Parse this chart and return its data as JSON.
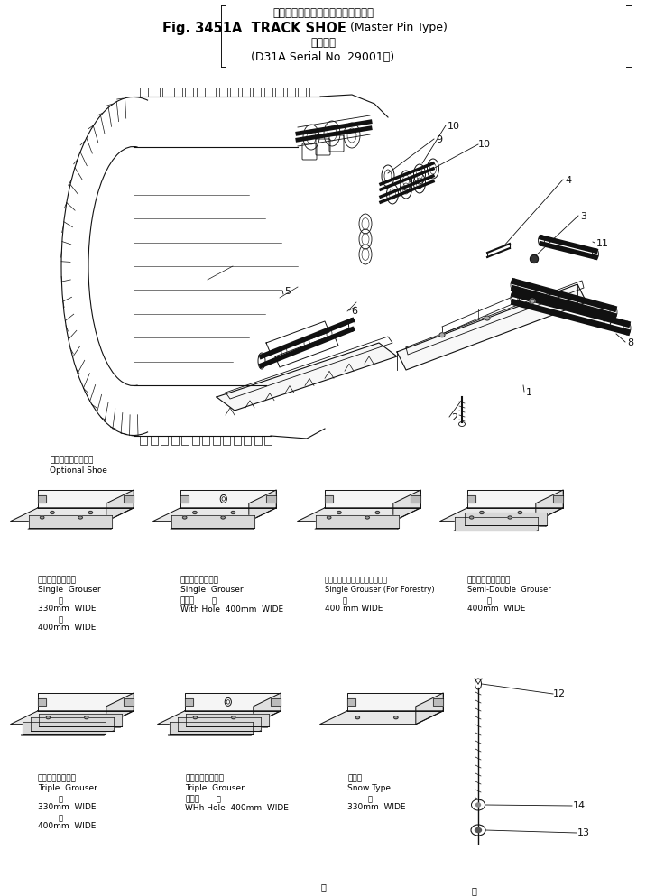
{
  "title_line1": "トラック　シュー（マスタピン　型",
  "title_line2_a": "Fig. 3451A  TRACK SHOE",
  "title_line2_b": "(Master Pin Type)",
  "title_line3": "適用号機",
  "title_line4": "(D31A Serial No. 29001～)",
  "bg_color": "#ffffff",
  "optional_shoe_jp": "オプショナルシュー",
  "optional_shoe_en": "Optional Shoe",
  "shoe1_jp": "シングルグローサ",
  "shoe1_en": "Single  Grouser",
  "shoe1_w1_jp": "幅",
  "shoe1_w1": "330mm  WIDE",
  "shoe1_w2_jp": "幅",
  "shoe1_w2": "400mm  WIDE",
  "shoe2_jp": "シングルグローサ",
  "shoe2_en": "Single  Grouser",
  "shoe2_hole": "穴あき",
  "shoe2_w_jp": "幅",
  "shoe2_w": "With Hole  400mm  WIDE",
  "shoe3_jp": "シングルグローサ　林　業　用",
  "shoe3_en": "Single Grouser (For Forestry)",
  "shoe3_w_jp": "幅",
  "shoe3_w": "400 mm WIDE",
  "shoe4_jp": "セミダブルグローサ",
  "shoe4_en": "Semi-Double  Grouser",
  "shoe4_w_jp": "幅",
  "shoe4_w": "400mm  WIDE",
  "shoe5_jp": "トリプルグローサ",
  "shoe5_en": "Triple  Grouser",
  "shoe5_w1_jp": "幅",
  "shoe5_w1": "330mm  WIDE",
  "shoe5_w2_jp": "幅",
  "shoe5_w2": "400mm  WIDE",
  "shoe6_jp": "トリプルグローサ",
  "shoe6_en": "Triple  Grouser",
  "shoe6_hole": "穴あき",
  "shoe6_w_jp": "幅",
  "shoe6_w": "WHh Hole  400mm  WIDE",
  "shoe7_jp": "雪上用",
  "shoe7_en": "Snow Type",
  "shoe7_w_jp": "幅",
  "shoe7_w": "330mm  WIDE",
  "figsize": [
    7.16,
    9.93
  ],
  "dpi": 100
}
